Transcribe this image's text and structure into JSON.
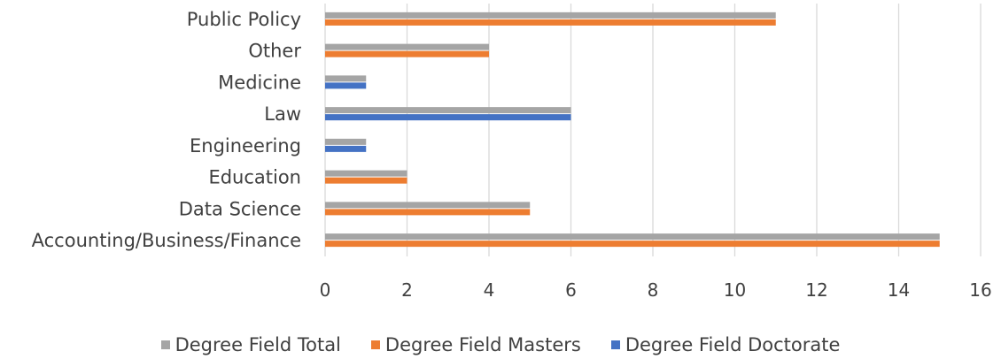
{
  "chart_data": {
    "type": "bar",
    "orientation": "horizontal",
    "categories": [
      "Public Policy",
      "Other",
      "Medicine",
      "Law",
      "Engineering",
      "Education",
      "Data Science",
      "Accounting/Business/Finance"
    ],
    "series": [
      {
        "name": "Degree Field Total",
        "color": "#a5a5a5",
        "values": [
          11,
          4,
          1,
          6,
          1,
          2,
          5,
          15
        ]
      },
      {
        "name": "Degree Field Masters",
        "color": "#ed7d31",
        "values": [
          11,
          4,
          0,
          0,
          0,
          2,
          5,
          15
        ]
      },
      {
        "name": "Degree Field Doctorate",
        "color": "#4472c4",
        "values": [
          0,
          0,
          1,
          6,
          1,
          0,
          0,
          0
        ]
      }
    ],
    "xlim": [
      0,
      16
    ],
    "xticks": [
      "0",
      "2",
      "4",
      "6",
      "8",
      "10",
      "12",
      "14",
      "16"
    ],
    "grid": true,
    "legend_position": "bottom"
  }
}
